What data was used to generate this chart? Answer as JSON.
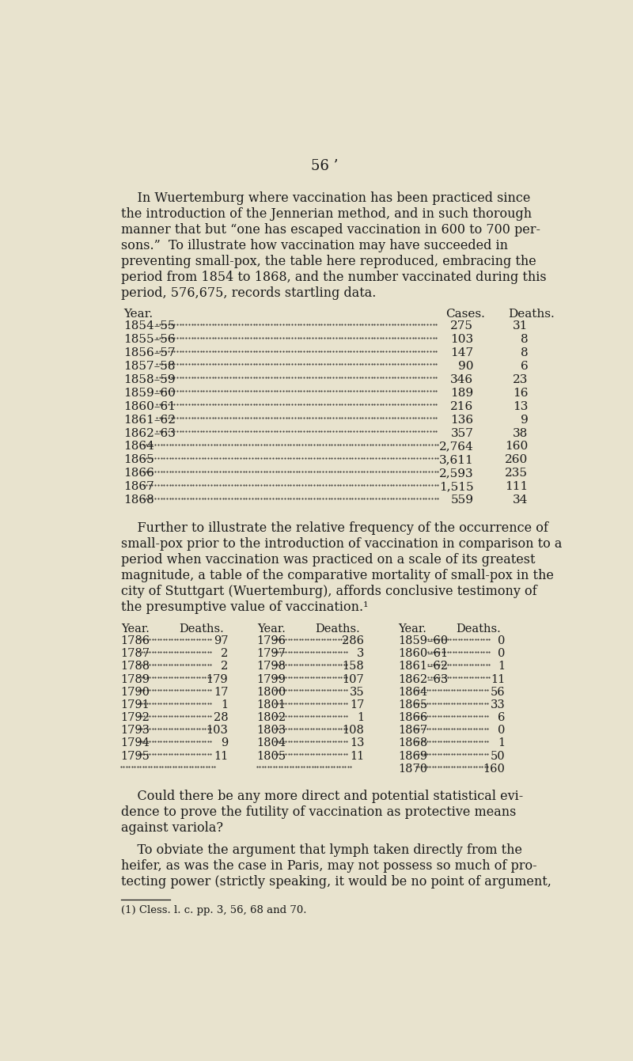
{
  "bg_color": "#e8e3ce",
  "text_color": "#1a1a1a",
  "page_number": "56 ’",
  "para1_lines": [
    "    In Wuertemburg where vaccination has been practiced since",
    "the introduction of the Jennerian method, and in such thorough",
    "manner that but “one has escaped vaccination in 600 to 700 per-",
    "sons.”  To illustrate how vaccination may have succeeded in",
    "preventing small-pox, the table here reproduced, embracing the",
    "period from 1854 to 1868, and the number vaccinated during this",
    "period, 576,675, records startling data."
  ],
  "table1_header_year": "Year.",
  "table1_header_cases": "Cases.",
  "table1_header_deaths": "Deaths.",
  "table1_rows": [
    [
      "1854–55",
      "275",
      "31"
    ],
    [
      "1855–56",
      "103",
      "8"
    ],
    [
      "1856–57",
      "147",
      "8"
    ],
    [
      "1857–58",
      "90",
      "6"
    ],
    [
      "1858–59",
      "346",
      "23"
    ],
    [
      "1859–60",
      "189",
      "16"
    ],
    [
      "1860–61",
      "216",
      "13"
    ],
    [
      "1861–62",
      "136",
      "9"
    ],
    [
      "1862–63",
      "357",
      "38"
    ],
    [
      "1864",
      "2,764",
      "160"
    ],
    [
      "1865",
      "3,611",
      "260"
    ],
    [
      "1866",
      "2,593",
      "235"
    ],
    [
      "1867",
      "1,515",
      "111"
    ],
    [
      "1868",
      "559",
      "34"
    ]
  ],
  "para2_lines": [
    "    Further to illustrate the relative frequency of the occurrence of",
    "small-pox prior to the introduction of vaccination in comparison to a",
    "period when vaccination was practiced on a scale of its greatest",
    "magnitude, a table of the comparative mortality of small-pox in the",
    "city of Stuttgart (Wuertemburg), affords conclusive testimony of",
    "the presumptive value of vaccination.¹"
  ],
  "table2_header": [
    "Year.",
    "Deaths.",
    "Year.",
    "Deaths.",
    "Year.",
    "Deaths."
  ],
  "table2_col1": [
    [
      "1786",
      "97"
    ],
    [
      "1787",
      "2"
    ],
    [
      "1788",
      "2"
    ],
    [
      "1789",
      "179"
    ],
    [
      "1790",
      "17"
    ],
    [
      "1791",
      "1"
    ],
    [
      "1792",
      "28"
    ],
    [
      "1793",
      "103"
    ],
    [
      "1794",
      "9"
    ],
    [
      "1795",
      "11"
    ],
    [
      "",
      ""
    ]
  ],
  "table2_col2": [
    [
      "1796",
      "286"
    ],
    [
      "1797",
      "3"
    ],
    [
      "1798",
      "158"
    ],
    [
      "1799",
      "107"
    ],
    [
      "1800",
      "35"
    ],
    [
      "1801",
      "17"
    ],
    [
      "1802",
      "1"
    ],
    [
      "1803",
      "108"
    ],
    [
      "1804",
      "13"
    ],
    [
      "1805",
      "11"
    ],
    [
      "",
      ""
    ]
  ],
  "table2_col3": [
    [
      "1859–60",
      "0"
    ],
    [
      "1860–61",
      "0"
    ],
    [
      "1861–62",
      "1"
    ],
    [
      "1862–63",
      "11"
    ],
    [
      "1864",
      "56"
    ],
    [
      "1865",
      "33"
    ],
    [
      "1866",
      "6"
    ],
    [
      "1867",
      "0"
    ],
    [
      "1868",
      "1"
    ],
    [
      "1869",
      "50"
    ],
    [
      "1870",
      "160"
    ]
  ],
  "para3_lines": [
    "    Could there be any more direct and potential statistical evi-",
    "dence to prove the futility of vaccination as protective means",
    "against variola?"
  ],
  "para4_lines": [
    "    To obviate the argument that lymph taken directly from the",
    "heifer, as was the case in Paris, may not possess so much of pro-",
    "tecting power (strictly speaking, it would be no point of argument,"
  ],
  "footnote": "(1) Cless. l. c. pp. 3, 56, 68 and 70."
}
